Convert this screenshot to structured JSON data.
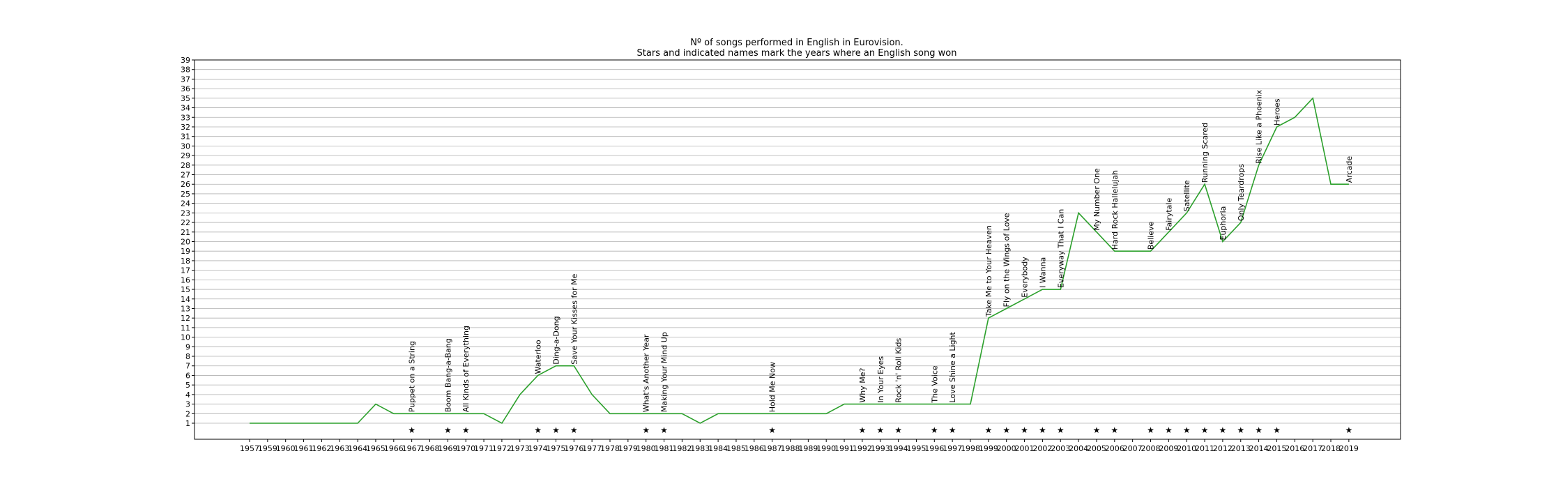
{
  "chart_data": {
    "type": "line",
    "title": "Nº of songs performed in English in Eurovision.",
    "subtitle": "Stars and indicated names mark the years where an English song won",
    "xlabel": "",
    "ylabel": "",
    "ylim": [
      0,
      39
    ],
    "yticks": [
      1,
      2,
      3,
      4,
      5,
      6,
      7,
      8,
      9,
      10,
      11,
      12,
      13,
      14,
      15,
      16,
      17,
      18,
      19,
      20,
      21,
      22,
      23,
      24,
      25,
      26,
      27,
      28,
      29,
      30,
      31,
      32,
      33,
      34,
      35,
      36,
      37,
      38,
      39
    ],
    "grid": "horizontal",
    "line_color": "#2ca02c",
    "categories": [
      "1957",
      "1959",
      "1960",
      "1961",
      "1962",
      "1963",
      "1964",
      "1965",
      "1966",
      "1967",
      "1968",
      "1969",
      "1970",
      "1971",
      "1972",
      "1973",
      "1974",
      "1975",
      "1976",
      "1977",
      "1978",
      "1979",
      "1980",
      "1981",
      "1982",
      "1983",
      "1984",
      "1985",
      "1986",
      "1987",
      "1988",
      "1989",
      "1990",
      "1991",
      "1992",
      "1993",
      "1994",
      "1995",
      "1996",
      "1997",
      "1998",
      "1999",
      "2000",
      "2001",
      "2002",
      "2003",
      "2004",
      "2005",
      "2006",
      "2007",
      "2008",
      "2009",
      "2010",
      "2011",
      "2012",
      "2013",
      "2014",
      "2015",
      "2016",
      "2017",
      "2018",
      "2019"
    ],
    "values": [
      1,
      1,
      1,
      1,
      1,
      1,
      1,
      3,
      2,
      2,
      2,
      2,
      2,
      2,
      1,
      4,
      6,
      7,
      7,
      4,
      2,
      2,
      2,
      2,
      2,
      1,
      2,
      2,
      2,
      2,
      2,
      2,
      2,
      3,
      3,
      3,
      3,
      3,
      3,
      3,
      3,
      12,
      13,
      14,
      15,
      15,
      23,
      21,
      19,
      19,
      19,
      21,
      23,
      26,
      20,
      22,
      28,
      32,
      33,
      35,
      26,
      26
    ],
    "winners": [
      {
        "year": "1967",
        "song": "Puppet on a String"
      },
      {
        "year": "1969",
        "song": "Boom Bang-a-Bang"
      },
      {
        "year": "1970",
        "song": "All Kinds of Everything"
      },
      {
        "year": "1974",
        "song": "Waterloo"
      },
      {
        "year": "1975",
        "song": "Ding-a-Dong"
      },
      {
        "year": "1976",
        "song": "Save Your Kisses for Me"
      },
      {
        "year": "1980",
        "song": "What's Another Year"
      },
      {
        "year": "1981",
        "song": "Making Your Mind Up"
      },
      {
        "year": "1987",
        "song": "Hold Me Now"
      },
      {
        "year": "1992",
        "song": "Why Me?"
      },
      {
        "year": "1993",
        "song": "In Your Eyes"
      },
      {
        "year": "1994",
        "song": "Rock 'n' Roll Kids"
      },
      {
        "year": "1996",
        "song": "The Voice"
      },
      {
        "year": "1997",
        "song": "Love Shine a Light"
      },
      {
        "year": "1999",
        "song": "Take Me to Your Heaven"
      },
      {
        "year": "2000",
        "song": "Fly on the Wings of Love"
      },
      {
        "year": "2001",
        "song": "Everybody"
      },
      {
        "year": "2002",
        "song": "I Wanna"
      },
      {
        "year": "2003",
        "song": "Everyway That I Can"
      },
      {
        "year": "2005",
        "song": "My Number One"
      },
      {
        "year": "2006",
        "song": "Hard Rock Hallelujah"
      },
      {
        "year": "2008",
        "song": "Believe"
      },
      {
        "year": "2009",
        "song": "Fairytale"
      },
      {
        "year": "2010",
        "song": "Satellite"
      },
      {
        "year": "2011",
        "song": "Running Scared"
      },
      {
        "year": "2012",
        "song": "Euphoria"
      },
      {
        "year": "2013",
        "song": "Only Teardrops"
      },
      {
        "year": "2014",
        "song": "Rise Like a Phoenix"
      },
      {
        "year": "2015",
        "song": "Heroes"
      },
      {
        "year": "2019",
        "song": "Arcade"
      }
    ],
    "star_symbol": "★"
  }
}
